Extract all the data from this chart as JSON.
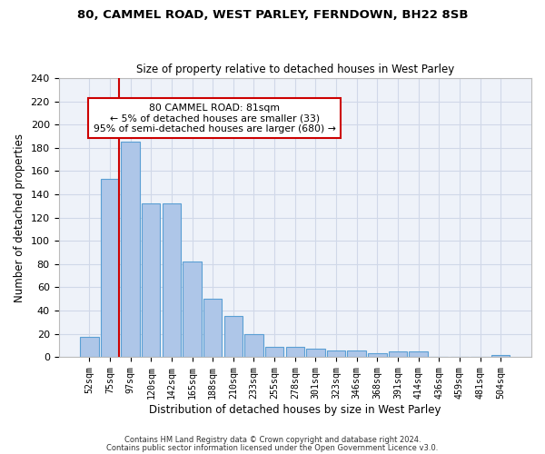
{
  "title1": "80, CAMMEL ROAD, WEST PARLEY, FERNDOWN, BH22 8SB",
  "title2": "Size of property relative to detached houses in West Parley",
  "xlabel": "Distribution of detached houses by size in West Parley",
  "ylabel": "Number of detached properties",
  "bar_labels": [
    "52sqm",
    "75sqm",
    "97sqm",
    "120sqm",
    "142sqm",
    "165sqm",
    "188sqm",
    "210sqm",
    "233sqm",
    "255sqm",
    "278sqm",
    "301sqm",
    "323sqm",
    "346sqm",
    "368sqm",
    "391sqm",
    "414sqm",
    "436sqm",
    "459sqm",
    "481sqm",
    "504sqm"
  ],
  "bar_values": [
    17,
    153,
    185,
    132,
    132,
    82,
    50,
    35,
    20,
    9,
    9,
    7,
    6,
    6,
    3,
    5,
    5,
    0,
    0,
    0,
    2
  ],
  "bar_color": "#aec6e8",
  "bar_edge_color": "#5a9fd4",
  "annotation_text_line1": "80 CAMMEL ROAD: 81sqm",
  "annotation_text_line2": "← 5% of detached houses are smaller (33)",
  "annotation_text_line3": "95% of semi-detached houses are larger (680) →",
  "annotation_box_color": "#ffffff",
  "annotation_box_edge": "#cc0000",
  "red_line_color": "#cc0000",
  "grid_color": "#d0d8e8",
  "background_color": "#eef2f9",
  "footer1": "Contains HM Land Registry data © Crown copyright and database right 2024.",
  "footer2": "Contains public sector information licensed under the Open Government Licence v3.0.",
  "ylim": [
    0,
    240
  ],
  "yticks": [
    0,
    20,
    40,
    60,
    80,
    100,
    120,
    140,
    160,
    180,
    200,
    220,
    240
  ]
}
